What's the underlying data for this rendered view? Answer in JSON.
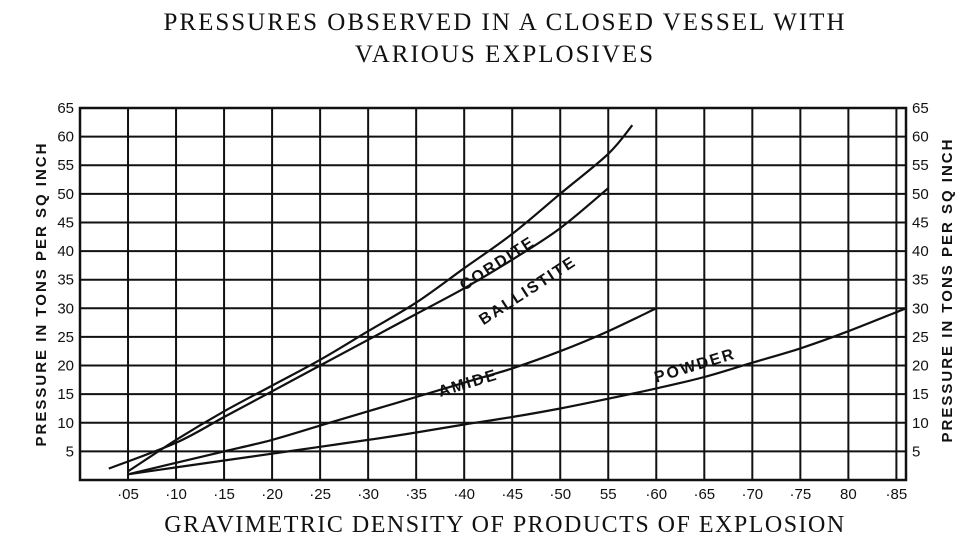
{
  "chart_data": {
    "type": "line",
    "title_lines": [
      "PRESSURES OBSERVED IN A CLOSED VESSEL WITH",
      "VARIOUS EXPLOSIVES"
    ],
    "xlabel": "GRAVIMETRIC DENSITY OF PRODUCTS OF EXPLOSION",
    "ylabel": "PRESSURE IN TONS PER SQ INCH",
    "ylabel_right": "PRESSURE IN TONS PER SQ INCH",
    "xlim": [
      0,
      0.86
    ],
    "ylim": [
      0,
      65
    ],
    "grid": true,
    "x_ticks": [
      {
        "value": 0.05,
        "label": "·05"
      },
      {
        "value": 0.1,
        "label": "·10"
      },
      {
        "value": 0.15,
        "label": "·15"
      },
      {
        "value": 0.2,
        "label": "·20"
      },
      {
        "value": 0.25,
        "label": "·25"
      },
      {
        "value": 0.3,
        "label": "·30"
      },
      {
        "value": 0.35,
        "label": "·35"
      },
      {
        "value": 0.4,
        "label": "·40"
      },
      {
        "value": 0.45,
        "label": "·45"
      },
      {
        "value": 0.5,
        "label": "·50"
      },
      {
        "value": 0.55,
        "label": "55"
      },
      {
        "value": 0.6,
        "label": "·60"
      },
      {
        "value": 0.65,
        "label": "·65"
      },
      {
        "value": 0.7,
        "label": "·70"
      },
      {
        "value": 0.75,
        "label": "·75"
      },
      {
        "value": 0.8,
        "label": "80"
      },
      {
        "value": 0.85,
        "label": "·85"
      }
    ],
    "y_ticks_left": [
      {
        "value": 5,
        "label": "5"
      },
      {
        "value": 10,
        "label": "10"
      },
      {
        "value": 15,
        "label": "15"
      },
      {
        "value": 20,
        "label": "20"
      },
      {
        "value": 25,
        "label": "25"
      },
      {
        "value": 30,
        "label": "30"
      },
      {
        "value": 35,
        "label": "35"
      },
      {
        "value": 40,
        "label": "40"
      },
      {
        "value": 45,
        "label": "45"
      },
      {
        "value": 50,
        "label": "50"
      },
      {
        "value": 55,
        "label": "55"
      },
      {
        "value": 60,
        "label": "60"
      },
      {
        "value": 65,
        "label": "65"
      }
    ],
    "y_ticks_right": [
      {
        "value": 5,
        "label": "5"
      },
      {
        "value": 10,
        "label": "10"
      },
      {
        "value": 15,
        "label": "15"
      },
      {
        "value": 20,
        "label": "20"
      },
      {
        "value": 25,
        "label": "25"
      },
      {
        "value": 30,
        "label": "30"
      },
      {
        "value": 35,
        "label": "35"
      },
      {
        "value": 40,
        "label": "40"
      },
      {
        "value": 45,
        "label": "45"
      },
      {
        "value": 50,
        "label": "50"
      },
      {
        "value": 55,
        "label": "55"
      },
      {
        "value": 60,
        "label": "60"
      },
      {
        "value": 65,
        "label": "65"
      }
    ],
    "series": [
      {
        "name": "CORDITE",
        "x": [
          0.05,
          0.1,
          0.15,
          0.2,
          0.25,
          0.3,
          0.35,
          0.4,
          0.45,
          0.5,
          0.55,
          0.575
        ],
        "y": [
          1.5,
          7,
          12,
          16.5,
          21,
          26,
          31,
          37,
          43,
          50,
          57,
          62
        ]
      },
      {
        "name": "BALLISTITE",
        "x": [
          0.03,
          0.1,
          0.15,
          0.2,
          0.25,
          0.3,
          0.35,
          0.4,
          0.45,
          0.5,
          0.55
        ],
        "y": [
          2,
          6.5,
          11,
          15.5,
          20,
          24.5,
          29,
          33.5,
          38.5,
          44,
          51
        ]
      },
      {
        "name": "AMIDE",
        "x": [
          0.05,
          0.1,
          0.15,
          0.2,
          0.25,
          0.3,
          0.35,
          0.4,
          0.45,
          0.5,
          0.55,
          0.6
        ],
        "y": [
          1,
          3,
          5,
          7,
          9.5,
          12,
          14.5,
          17,
          19.5,
          22.5,
          26,
          30
        ]
      },
      {
        "name": "POWDER",
        "x": [
          0.05,
          0.1,
          0.15,
          0.2,
          0.25,
          0.3,
          0.35,
          0.4,
          0.45,
          0.5,
          0.55,
          0.6,
          0.65,
          0.7,
          0.75,
          0.8,
          0.86
        ],
        "y": [
          1,
          2.2,
          3.4,
          4.6,
          5.8,
          7,
          8.3,
          9.7,
          11,
          12.5,
          14.2,
          16,
          18,
          20.5,
          23,
          26,
          30
        ]
      }
    ],
    "curve_labels": [
      {
        "series": "CORDITE",
        "text": "CORDITE",
        "x": 0.4,
        "y": 33,
        "angle_deg": -33
      },
      {
        "series": "BALLISTITE",
        "text": "BALLISTITE",
        "x": 0.42,
        "y": 27,
        "angle_deg": -33
      },
      {
        "series": "AMIDE",
        "text": "AMIDE",
        "x": 0.375,
        "y": 14.5,
        "angle_deg": -17
      },
      {
        "series": "POWDER",
        "text": "POWDER",
        "x": 0.6,
        "y": 17,
        "angle_deg": -17
      }
    ]
  }
}
